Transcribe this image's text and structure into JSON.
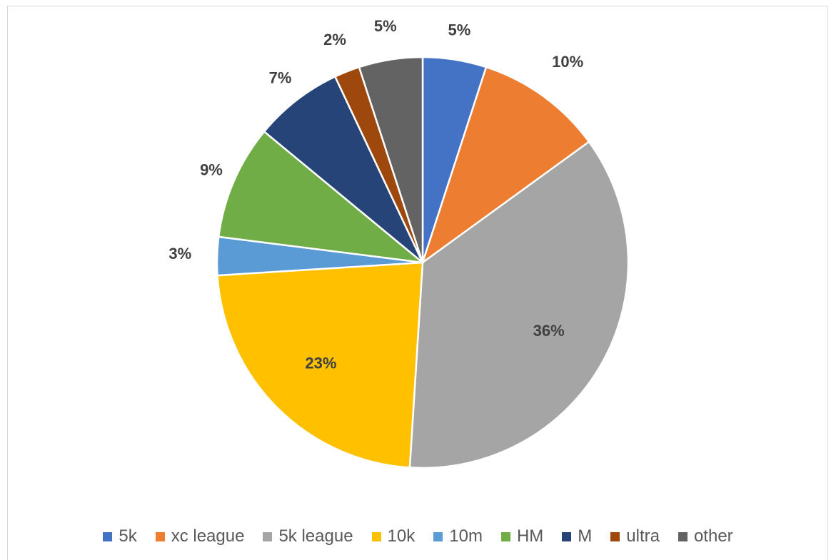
{
  "chart_data": {
    "type": "pie",
    "title": "",
    "categories": [
      "5k",
      "xc league",
      "5k league",
      "10k",
      "10m",
      "HM",
      "M",
      "ultra",
      "other"
    ],
    "values": [
      5,
      10,
      36,
      23,
      3,
      9,
      7,
      2,
      5
    ],
    "labels": [
      "5%",
      "10%",
      "36%",
      "23%",
      "3%",
      "9%",
      "7%",
      "2%",
      "5%"
    ],
    "colors": [
      "#4472C4",
      "#ED7D31",
      "#A5A5A5",
      "#FFC000",
      "#5B9BD5",
      "#70AD47",
      "#264478",
      "#9E480E",
      "#636363"
    ],
    "start_angle": "12 o'clock",
    "direction": "clockwise",
    "data_labels": "percent, bold",
    "legend_position": "bottom"
  }
}
